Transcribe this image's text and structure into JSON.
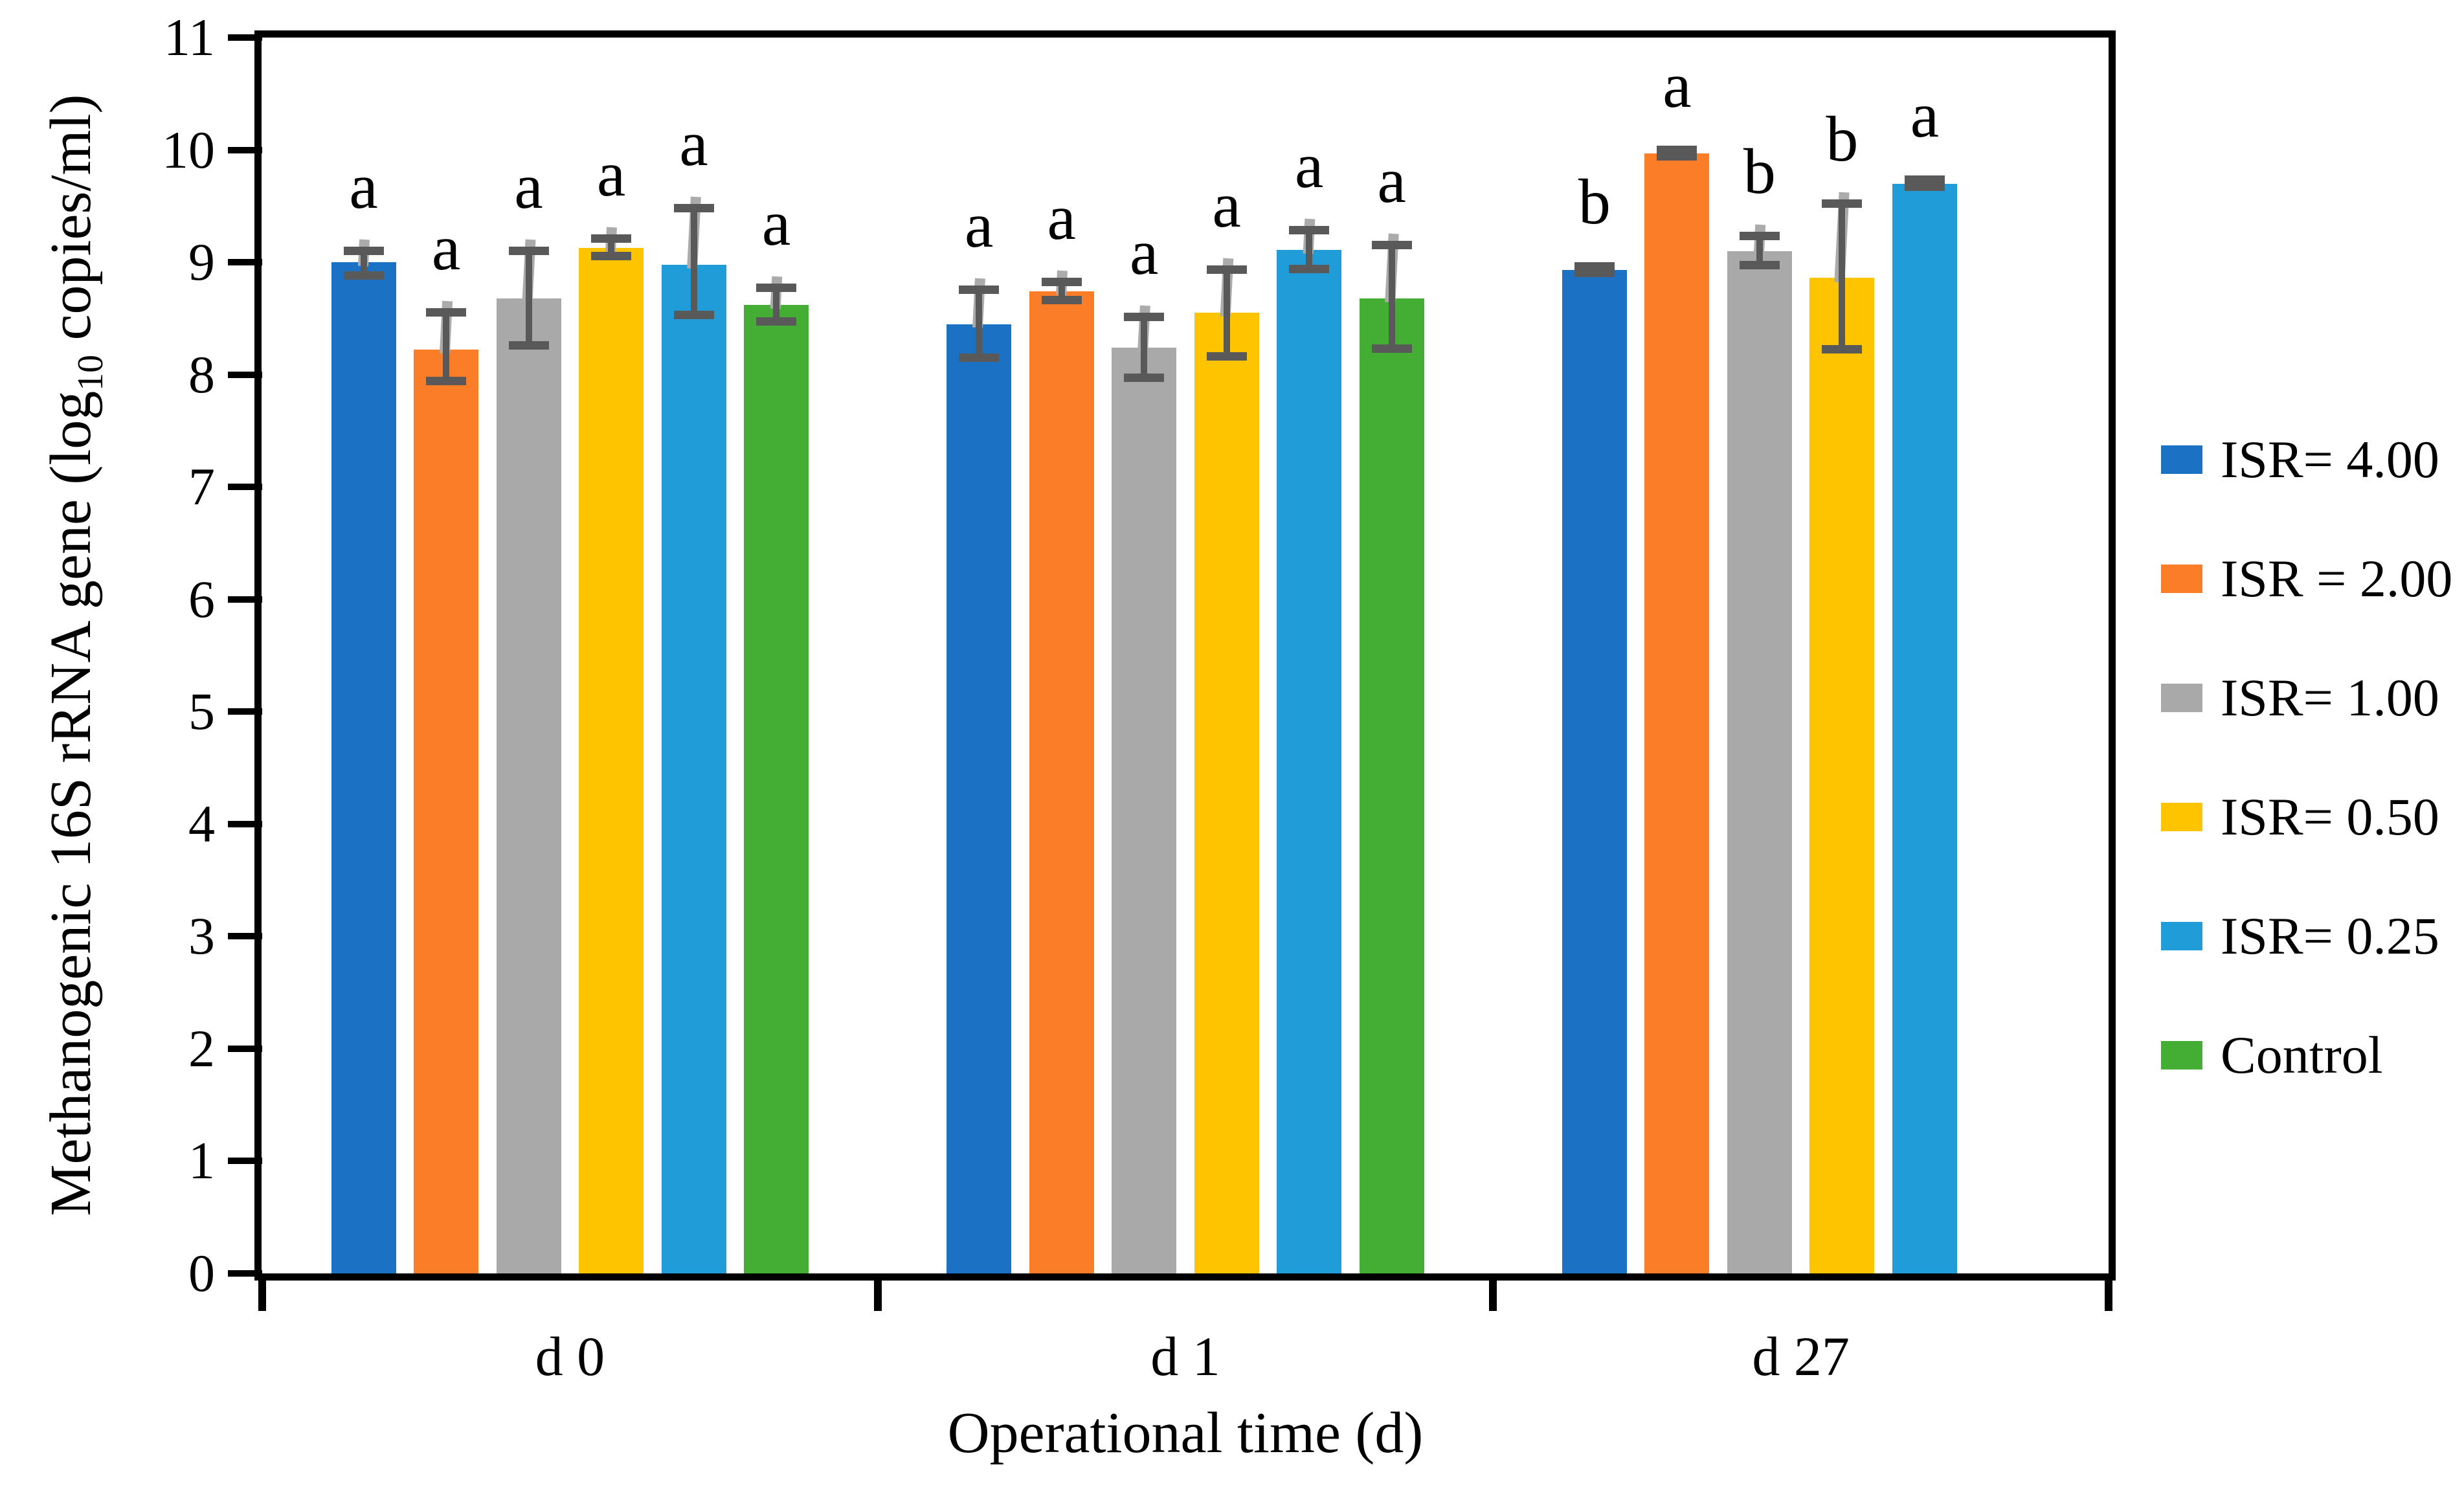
{
  "figure": {
    "xlabel": "Operational time (d)",
    "ylabel_prefix": "Methanogenic 16S rRNA gene (log",
    "ylabel_sub": "10",
    "ylabel_suffix": " copies/ml)"
  },
  "chart_data": {
    "type": "bar",
    "title": "",
    "xlabel": "Operational time (d)",
    "ylabel": "Methanogenic 16S rRNA gene (log10 copies/ml)",
    "categories": [
      "d 0",
      "d 1",
      "d 27"
    ],
    "ylim": [
      0,
      11
    ],
    "yticks": [
      0,
      1,
      2,
      3,
      4,
      5,
      6,
      7,
      8,
      9,
      10,
      11
    ],
    "grid": false,
    "legend_position": "right",
    "error_bar_colors": {
      "line": "#595959",
      "cap": "#595959",
      "accent": "#ABABAB"
    },
    "series": [
      {
        "name": "ISR= 4.00",
        "color": "#1B72C4",
        "values": [
          9.0,
          8.45,
          8.93
        ],
        "err_up": [
          0.1,
          0.3,
          0.03
        ],
        "err_down": [
          0.12,
          0.3,
          0.03
        ],
        "letters": [
          "a",
          "a",
          "b"
        ]
      },
      {
        "name": "ISR = 2.00",
        "color": "#FB7D27",
        "values": [
          8.22,
          8.74,
          9.97
        ],
        "err_up": [
          0.33,
          0.08,
          0.03
        ],
        "err_down": [
          0.28,
          0.08,
          0.03
        ],
        "letters": [
          "a",
          "a",
          "a"
        ]
      },
      {
        "name": "ISR= 1.00",
        "color": "#A9A9A9",
        "values": [
          8.68,
          8.24,
          9.1
        ],
        "err_up": [
          0.42,
          0.27,
          0.13
        ],
        "err_down": [
          0.42,
          0.27,
          0.13
        ],
        "letters": [
          "a",
          "a",
          "b"
        ]
      },
      {
        "name": "ISR= 0.50",
        "color": "#FEC400",
        "values": [
          9.13,
          8.55,
          8.86
        ],
        "err_up": [
          0.08,
          0.38,
          0.66
        ],
        "err_down": [
          0.08,
          0.39,
          0.64
        ],
        "letters": [
          "a",
          "a",
          "b"
        ]
      },
      {
        "name": "ISR= 0.25",
        "color": "#209CD8",
        "values": [
          8.98,
          9.11,
          9.7
        ],
        "err_up": [
          0.5,
          0.17,
          0.03
        ],
        "err_down": [
          0.45,
          0.17,
          0.03
        ],
        "letters": [
          "a",
          "a",
          "a"
        ]
      },
      {
        "name": "Control",
        "color": "#43AD34",
        "values": [
          8.62,
          8.68,
          null
        ],
        "err_up": [
          0.15,
          0.47,
          null
        ],
        "err_down": [
          0.15,
          0.45,
          null
        ],
        "letters": [
          "a",
          "a",
          null
        ]
      }
    ]
  }
}
